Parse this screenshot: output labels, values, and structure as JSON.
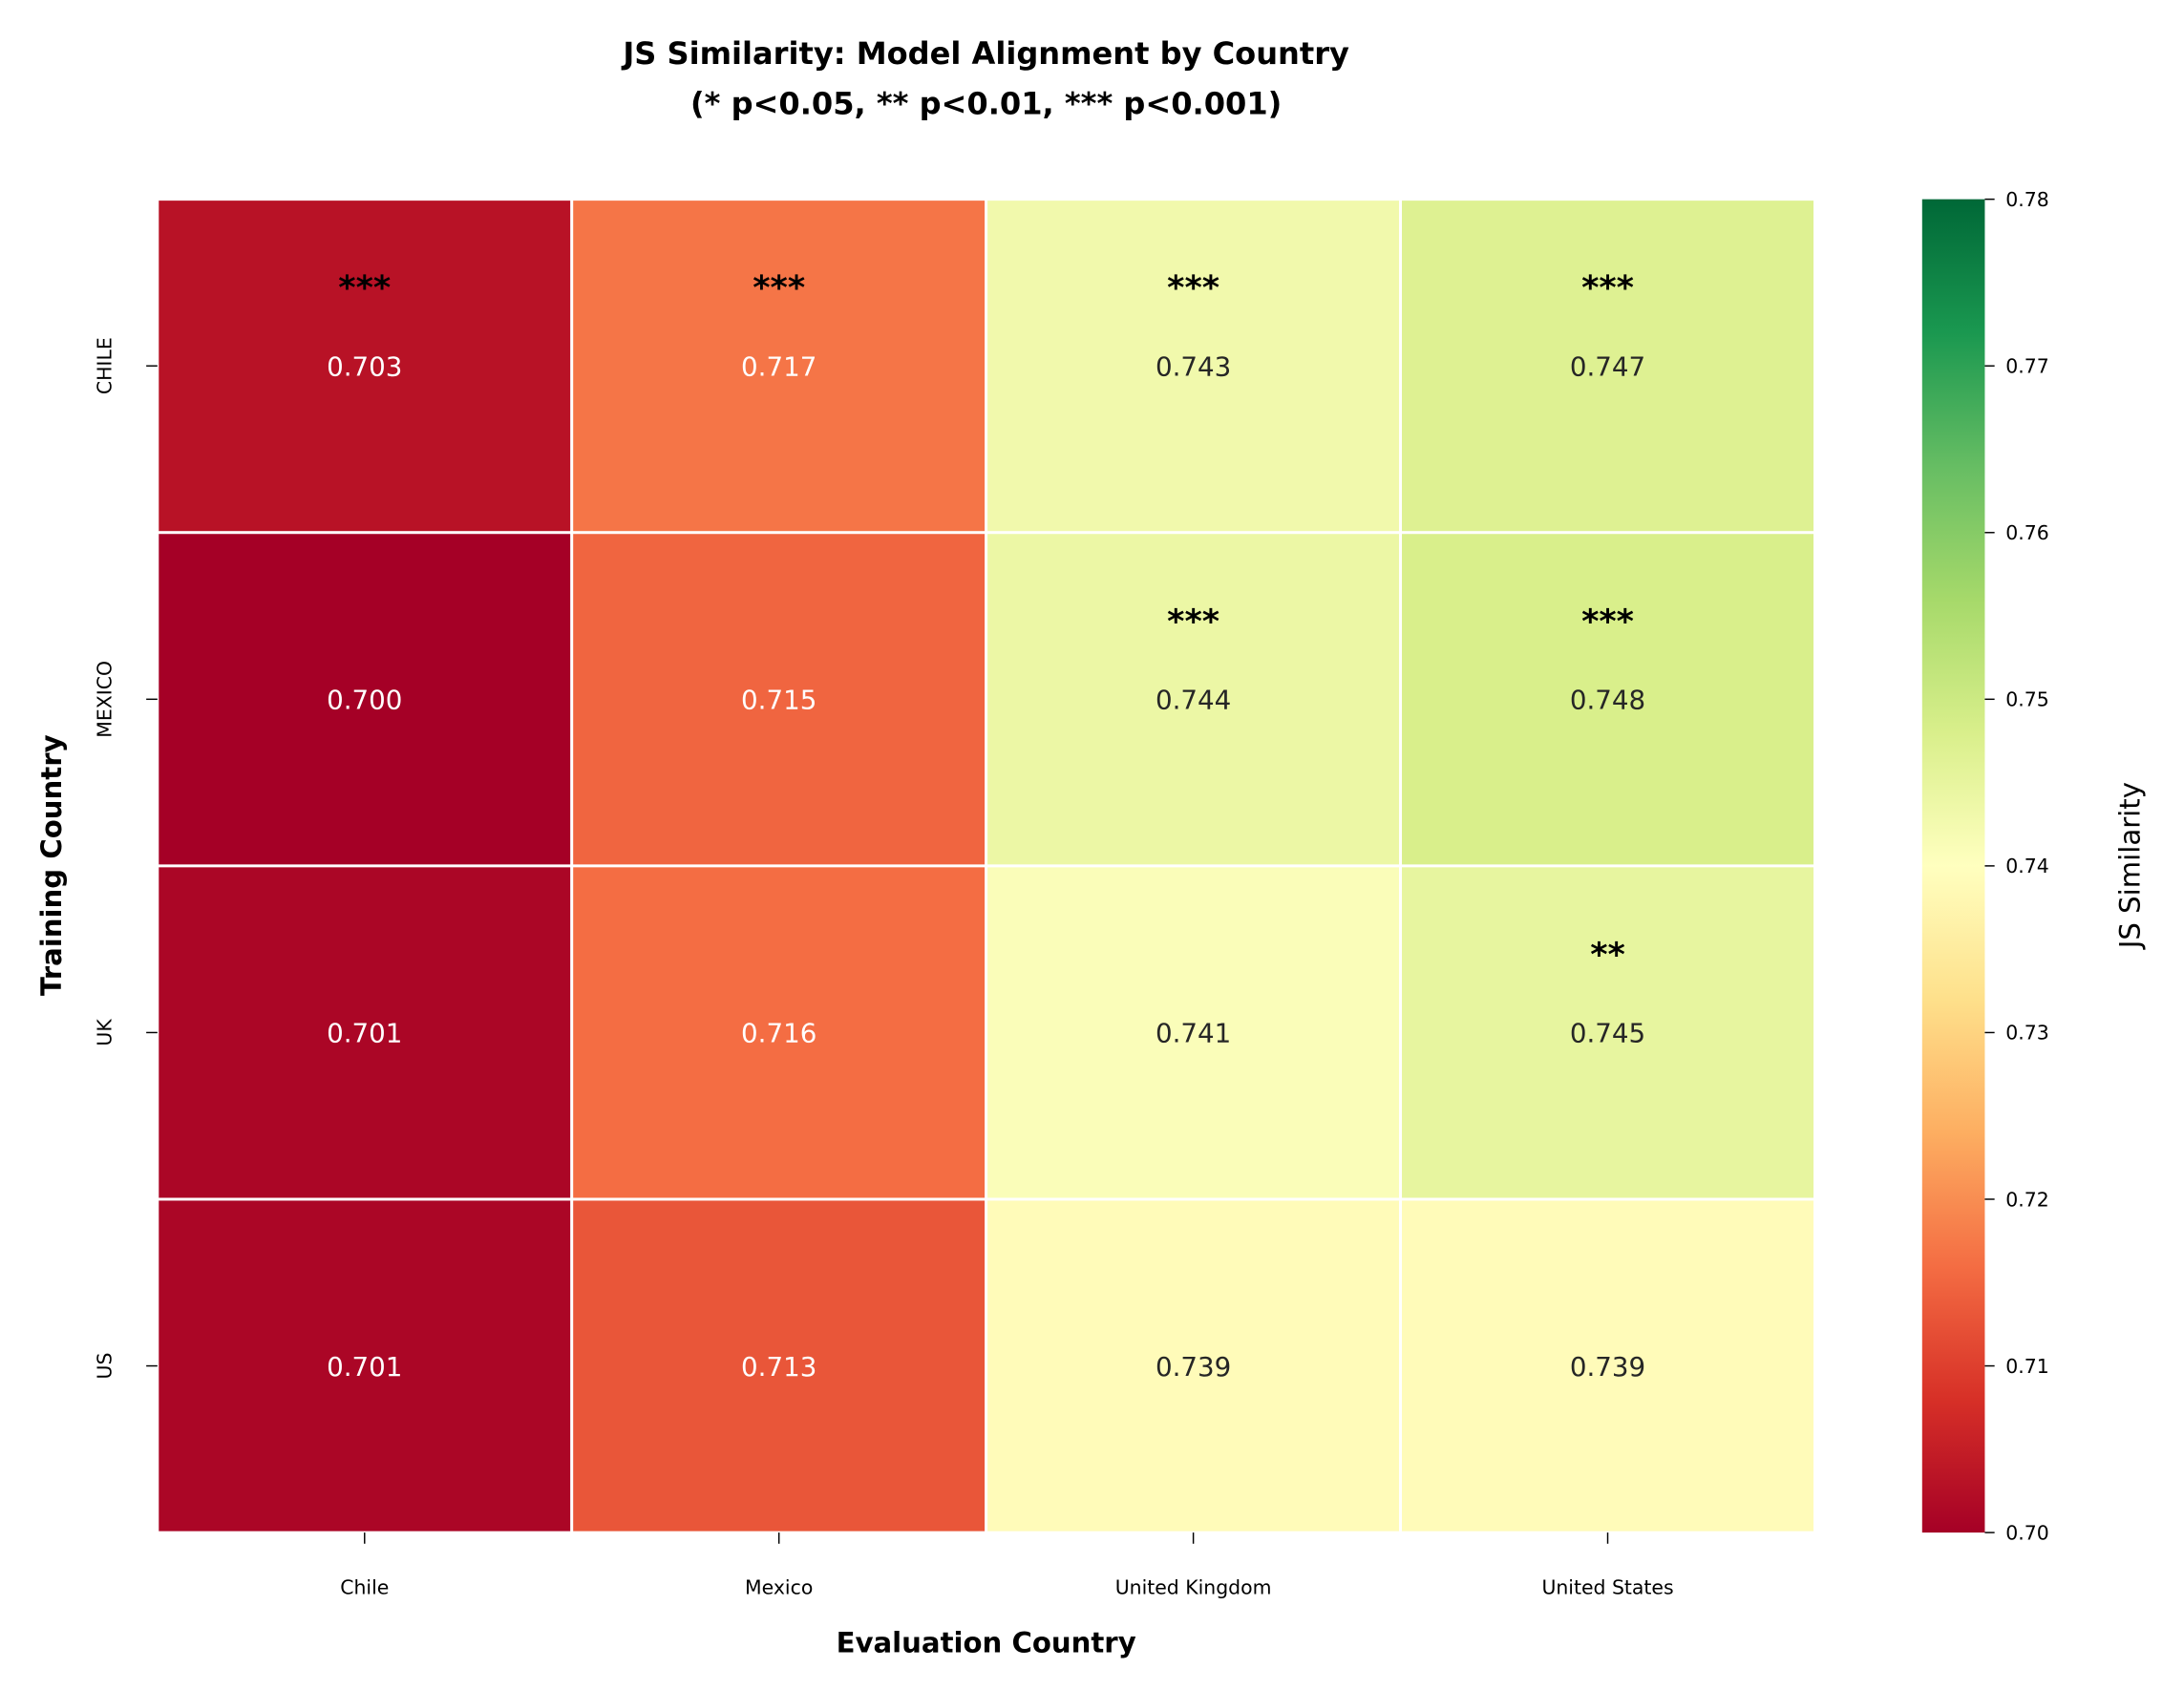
{
  "chart_data": {
    "type": "heatmap",
    "title": "JS Similarity: Model Alignment by Country",
    "subtitle": "(* p<0.05, ** p<0.01, *** p<0.001)",
    "xlabel": "Evaluation Country",
    "ylabel": "Training Country",
    "x_categories": [
      "Chile",
      "Mexico",
      "United Kingdom",
      "United States"
    ],
    "y_categories": [
      "CHILE",
      "MEXICO",
      "UK",
      "US"
    ],
    "values": [
      [
        0.703,
        0.717,
        0.743,
        0.747
      ],
      [
        0.7,
        0.715,
        0.744,
        0.748
      ],
      [
        0.701,
        0.716,
        0.741,
        0.745
      ],
      [
        0.701,
        0.713,
        0.739,
        0.739
      ]
    ],
    "value_labels": [
      [
        "0.703",
        "0.717",
        "0.743",
        "0.747"
      ],
      [
        "0.700",
        "0.715",
        "0.744",
        "0.748"
      ],
      [
        "0.701",
        "0.716",
        "0.741",
        "0.745"
      ],
      [
        "0.701",
        "0.713",
        "0.739",
        "0.739"
      ]
    ],
    "significance": [
      [
        "***",
        "***",
        "***",
        "***"
      ],
      [
        "",
        "",
        "***",
        "***"
      ],
      [
        "",
        "",
        "",
        "**"
      ],
      [
        "",
        "",
        "",
        ""
      ]
    ],
    "colormap": "RdYlGn",
    "colorbar": {
      "label": "JS Similarity",
      "range": [
        0.7,
        0.78
      ],
      "ticks": [
        "0.70",
        "0.71",
        "0.72",
        "0.73",
        "0.74",
        "0.75",
        "0.76",
        "0.77",
        "0.78"
      ]
    }
  }
}
